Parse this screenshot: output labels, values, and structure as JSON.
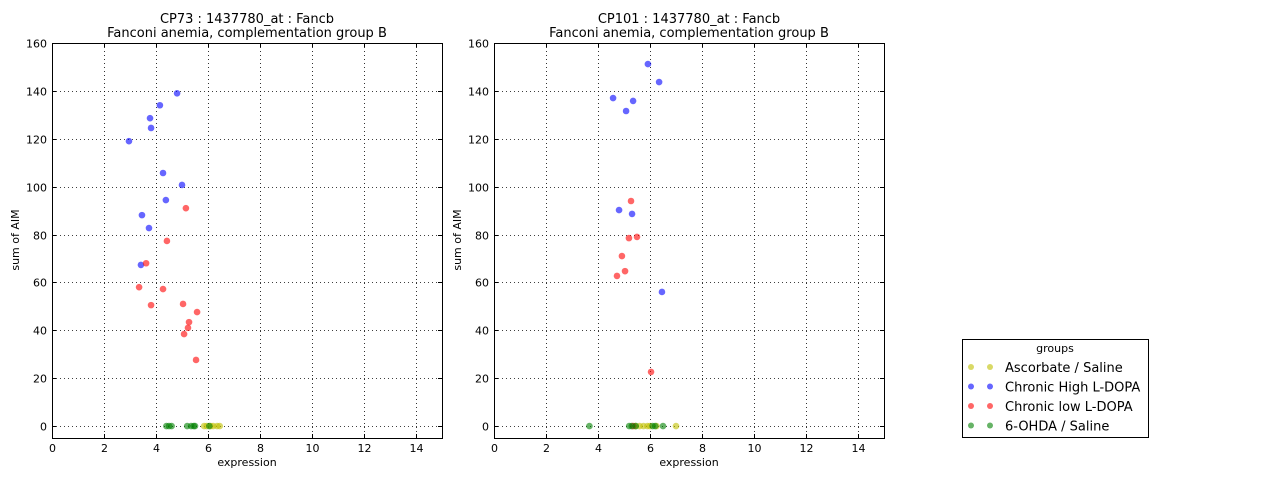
{
  "chart_data": [
    {
      "type": "scatter",
      "title": "CP73 : 1437780_at : Fancb",
      "subtitle": "Fanconi anemia, complementation group B",
      "xlabel": "expression",
      "ylabel": "sum of AIM",
      "xlim": [
        0,
        15
      ],
      "ylim": [
        -5,
        160
      ],
      "xticks": [
        0,
        2,
        4,
        6,
        8,
        10,
        12,
        14
      ],
      "yticks": [
        0,
        20,
        40,
        60,
        80,
        100,
        120,
        140,
        160
      ],
      "grid": true,
      "series": [
        {
          "name": "Ascorbate / Saline",
          "color": "#bfbf00",
          "points": [
            [
              5.85,
              0
            ],
            [
              5.95,
              0
            ],
            [
              6.1,
              0
            ],
            [
              6.2,
              0
            ],
            [
              6.35,
              0
            ],
            [
              6.45,
              0
            ]
          ]
        },
        {
          "name": "Chronic High L-DOPA",
          "color": "#0000ff",
          "points": [
            [
              2.96,
              119
            ],
            [
              4.15,
              134
            ],
            [
              4.81,
              139
            ],
            [
              3.77,
              128.6
            ],
            [
              3.81,
              124.5
            ],
            [
              4.27,
              105.7
            ],
            [
              5.0,
              100.7
            ],
            [
              4.38,
              94.4
            ],
            [
              3.46,
              88.1
            ],
            [
              3.73,
              82.7
            ],
            [
              3.42,
              67.3
            ]
          ]
        },
        {
          "name": "Chronic low L-DOPA",
          "color": "#ff0000",
          "points": [
            [
              5.15,
              91
            ],
            [
              4.42,
              77.3
            ],
            [
              3.62,
              68
            ],
            [
              3.35,
              58
            ],
            [
              4.27,
              57.2
            ],
            [
              3.81,
              50.5
            ],
            [
              5.04,
              51
            ],
            [
              5.58,
              47.6
            ],
            [
              5.27,
              43.4
            ],
            [
              5.23,
              41
            ],
            [
              5.08,
              38.4
            ],
            [
              5.54,
              27.6
            ]
          ]
        },
        {
          "name": "6-OHDA / Saline",
          "color": "#008000",
          "points": [
            [
              4.4,
              0
            ],
            [
              4.5,
              0
            ],
            [
              4.6,
              0
            ],
            [
              5.2,
              0
            ],
            [
              5.35,
              0
            ],
            [
              5.45,
              0
            ],
            [
              5.5,
              0
            ],
            [
              6.05,
              0
            ]
          ]
        }
      ]
    },
    {
      "type": "scatter",
      "title": "CP101 : 1437780_at : Fancb",
      "subtitle": "Fanconi anemia, complementation group B",
      "xlabel": "expression",
      "ylabel": "sum of AIM",
      "xlim": [
        0,
        15
      ],
      "ylim": [
        -5,
        160
      ],
      "xticks": [
        0,
        2,
        4,
        6,
        8,
        10,
        12,
        14
      ],
      "yticks": [
        0,
        20,
        40,
        60,
        80,
        100,
        120,
        140,
        160
      ],
      "grid": true,
      "series": [
        {
          "name": "Ascorbate / Saline",
          "color": "#bfbf00",
          "points": [
            [
              5.45,
              0
            ],
            [
              5.6,
              0
            ],
            [
              5.75,
              0
            ],
            [
              5.9,
              0
            ],
            [
              6.0,
              0
            ],
            [
              6.25,
              0
            ],
            [
              7.0,
              0
            ]
          ]
        },
        {
          "name": "Chronic High L-DOPA",
          "color": "#0000ff",
          "points": [
            [
              5.92,
              151.2
            ],
            [
              6.35,
              143.7
            ],
            [
              4.58,
              137
            ],
            [
              5.35,
              135.8
            ],
            [
              5.08,
              131.6
            ],
            [
              4.81,
              90.2
            ],
            [
              5.31,
              88.6
            ],
            [
              6.46,
              56
            ]
          ]
        },
        {
          "name": "Chronic low L-DOPA",
          "color": "#ff0000",
          "points": [
            [
              5.27,
              94
            ],
            [
              5.19,
              78.5
            ],
            [
              5.5,
              79
            ],
            [
              4.92,
              71
            ],
            [
              5.04,
              64.7
            ],
            [
              4.73,
              62.7
            ],
            [
              6.04,
              22.6
            ],
            [
              5.35,
              0
            ]
          ]
        },
        {
          "name": "6-OHDA / Saline",
          "color": "#008000",
          "points": [
            [
              3.67,
              0
            ],
            [
              5.2,
              0
            ],
            [
              5.3,
              0
            ],
            [
              5.45,
              0
            ],
            [
              6.1,
              0
            ],
            [
              6.2,
              0
            ],
            [
              6.5,
              0
            ]
          ]
        }
      ]
    }
  ],
  "legend": {
    "title": "groups",
    "placement": "right",
    "entries": [
      {
        "label": "Ascorbate / Saline",
        "color": "#bfbf00"
      },
      {
        "label": "Chronic High L-DOPA",
        "color": "#0000ff"
      },
      {
        "label": "Chronic low L-DOPA",
        "color": "#ff0000"
      },
      {
        "label": "6-OHDA / Saline",
        "color": "#008000"
      }
    ]
  }
}
